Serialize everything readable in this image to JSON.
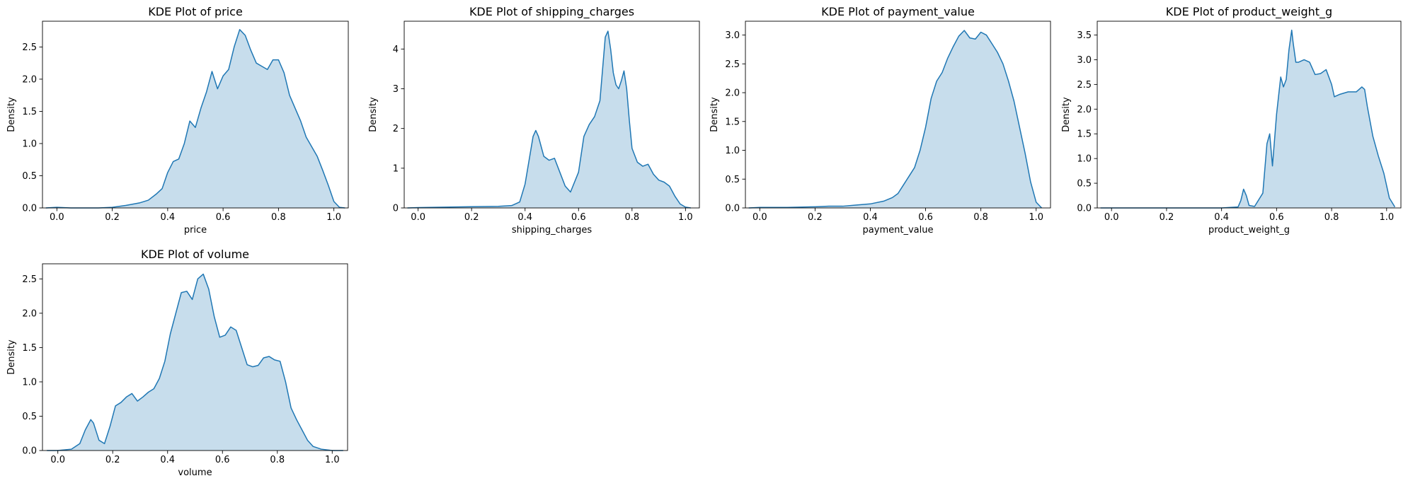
{
  "figure": {
    "background": "#ffffff"
  },
  "style": {
    "line_color": "#1f77b4",
    "fill_color": "#1f77b4",
    "fill_opacity": 0.25
  },
  "chart_data": [
    {
      "type": "area",
      "title": "KDE Plot of price",
      "xlabel": "price",
      "ylabel": "Density",
      "xlim": [
        -0.052,
        1.052
      ],
      "ylim": [
        0,
        2.9
      ],
      "xticks": [
        0.0,
        0.2,
        0.4,
        0.6,
        0.8,
        1.0
      ],
      "xtick_labels": [
        "0.0",
        "0.2",
        "0.4",
        "0.6",
        "0.8",
        "1.0"
      ],
      "yticks": [
        0.0,
        0.5,
        1.0,
        1.5,
        2.0,
        2.5
      ],
      "ytick_labels": [
        "0.0",
        "0.5",
        "1.0",
        "1.5",
        "2.0",
        "2.5"
      ],
      "grid": false,
      "series": [
        {
          "x": [
            -0.04,
            0.0,
            0.05,
            0.1,
            0.15,
            0.2,
            0.25,
            0.3,
            0.33,
            0.36,
            0.38,
            0.4,
            0.42,
            0.44,
            0.46,
            0.48,
            0.5,
            0.52,
            0.54,
            0.56,
            0.58,
            0.6,
            0.62,
            0.64,
            0.66,
            0.68,
            0.7,
            0.72,
            0.74,
            0.76,
            0.78,
            0.8,
            0.82,
            0.84,
            0.86,
            0.88,
            0.9,
            0.92,
            0.94,
            0.96,
            0.98,
            1.0,
            1.02,
            1.04
          ],
          "y": [
            0.0,
            0.01,
            0.0,
            0.0,
            0.0,
            0.01,
            0.04,
            0.08,
            0.12,
            0.22,
            0.3,
            0.55,
            0.72,
            0.76,
            1.0,
            1.35,
            1.25,
            1.55,
            1.8,
            2.12,
            1.85,
            2.05,
            2.15,
            2.5,
            2.77,
            2.68,
            2.45,
            2.25,
            2.2,
            2.15,
            2.3,
            2.3,
            2.1,
            1.75,
            1.55,
            1.35,
            1.1,
            0.95,
            0.8,
            0.58,
            0.35,
            0.1,
            0.01,
            0.0
          ]
        }
      ]
    },
    {
      "type": "area",
      "title": "KDE Plot of shipping_charges",
      "xlabel": "shipping_charges",
      "ylabel": "Density",
      "xlim": [
        -0.052,
        1.052
      ],
      "ylim": [
        0,
        4.7
      ],
      "xticks": [
        0.0,
        0.2,
        0.4,
        0.6,
        0.8,
        1.0
      ],
      "xtick_labels": [
        "0.0",
        "0.2",
        "0.4",
        "0.6",
        "0.8",
        "1.0"
      ],
      "yticks": [
        0,
        1,
        2,
        3,
        4
      ],
      "ytick_labels": [
        "0",
        "1",
        "2",
        "3",
        "4"
      ],
      "grid": false,
      "series": [
        {
          "x": [
            -0.04,
            0.0,
            0.1,
            0.2,
            0.3,
            0.35,
            0.38,
            0.4,
            0.42,
            0.43,
            0.44,
            0.45,
            0.47,
            0.49,
            0.51,
            0.53,
            0.55,
            0.57,
            0.6,
            0.62,
            0.64,
            0.66,
            0.68,
            0.69,
            0.7,
            0.71,
            0.72,
            0.73,
            0.74,
            0.75,
            0.76,
            0.77,
            0.78,
            0.79,
            0.8,
            0.82,
            0.84,
            0.86,
            0.88,
            0.9,
            0.92,
            0.94,
            0.96,
            0.98,
            1.0,
            1.02
          ],
          "y": [
            0.0,
            0.01,
            0.02,
            0.03,
            0.04,
            0.06,
            0.15,
            0.6,
            1.4,
            1.8,
            1.95,
            1.8,
            1.3,
            1.2,
            1.25,
            0.9,
            0.55,
            0.4,
            0.9,
            1.8,
            2.1,
            2.3,
            2.7,
            3.5,
            4.3,
            4.45,
            4.0,
            3.4,
            3.1,
            3.0,
            3.2,
            3.45,
            3.0,
            2.2,
            1.5,
            1.15,
            1.05,
            1.1,
            0.85,
            0.7,
            0.65,
            0.55,
            0.3,
            0.1,
            0.02,
            0.0
          ]
        }
      ]
    },
    {
      "type": "area",
      "title": "KDE Plot of payment_value",
      "xlabel": "payment_value",
      "ylabel": "Density",
      "xlim": [
        -0.052,
        1.052
      ],
      "ylim": [
        0,
        3.24
      ],
      "xticks": [
        0.0,
        0.2,
        0.4,
        0.6,
        0.8,
        1.0
      ],
      "xtick_labels": [
        "0.0",
        "0.2",
        "0.4",
        "0.6",
        "0.8",
        "1.0"
      ],
      "yticks": [
        0.0,
        0.5,
        1.0,
        1.5,
        2.0,
        2.5,
        3.0
      ],
      "ytick_labels": [
        "0.0",
        "0.5",
        "1.0",
        "1.5",
        "2.0",
        "2.5",
        "3.0"
      ],
      "grid": false,
      "series": [
        {
          "x": [
            -0.04,
            0.0,
            0.1,
            0.2,
            0.25,
            0.3,
            0.35,
            0.4,
            0.45,
            0.48,
            0.5,
            0.52,
            0.54,
            0.56,
            0.58,
            0.6,
            0.62,
            0.64,
            0.66,
            0.68,
            0.7,
            0.72,
            0.74,
            0.76,
            0.78,
            0.8,
            0.82,
            0.84,
            0.86,
            0.88,
            0.9,
            0.92,
            0.94,
            0.96,
            0.98,
            1.0,
            1.02
          ],
          "y": [
            0.0,
            0.01,
            0.01,
            0.02,
            0.03,
            0.03,
            0.05,
            0.07,
            0.12,
            0.18,
            0.25,
            0.4,
            0.55,
            0.7,
            1.0,
            1.4,
            1.9,
            2.2,
            2.35,
            2.6,
            2.8,
            2.98,
            3.08,
            2.95,
            2.93,
            3.05,
            3.0,
            2.85,
            2.7,
            2.5,
            2.2,
            1.85,
            1.4,
            0.95,
            0.45,
            0.1,
            0.0
          ]
        }
      ]
    },
    {
      "type": "area",
      "title": "KDE Plot of product_weight_g",
      "xlabel": "product_weight_g",
      "ylabel": "Density",
      "xlim": [
        -0.052,
        1.052
      ],
      "ylim": [
        0,
        3.78
      ],
      "xticks": [
        0.0,
        0.2,
        0.4,
        0.6,
        0.8,
        1.0
      ],
      "xtick_labels": [
        "0.0",
        "0.2",
        "0.4",
        "0.6",
        "0.8",
        "1.0"
      ],
      "yticks": [
        0.0,
        0.5,
        1.0,
        1.5,
        2.0,
        2.5,
        3.0,
        3.5
      ],
      "ytick_labels": [
        "0.0",
        "0.5",
        "1.0",
        "1.5",
        "2.0",
        "2.5",
        "3.0",
        "3.5"
      ],
      "grid": false,
      "series": [
        {
          "x": [
            -0.04,
            0.0,
            0.2,
            0.4,
            0.46,
            0.47,
            0.48,
            0.49,
            0.5,
            0.52,
            0.55,
            0.565,
            0.575,
            0.585,
            0.6,
            0.615,
            0.625,
            0.635,
            0.645,
            0.655,
            0.66,
            0.67,
            0.68,
            0.7,
            0.72,
            0.74,
            0.76,
            0.78,
            0.8,
            0.81,
            0.83,
            0.86,
            0.89,
            0.91,
            0.92,
            0.93,
            0.95,
            0.97,
            0.99,
            1.01,
            1.03
          ],
          "y": [
            0.0,
            0.0,
            0.0,
            0.0,
            0.02,
            0.15,
            0.38,
            0.25,
            0.05,
            0.03,
            0.3,
            1.3,
            1.5,
            0.85,
            1.9,
            2.65,
            2.45,
            2.6,
            3.2,
            3.6,
            3.35,
            2.95,
            2.95,
            3.0,
            2.95,
            2.7,
            2.72,
            2.8,
            2.5,
            2.25,
            2.3,
            2.35,
            2.35,
            2.45,
            2.4,
            2.05,
            1.45,
            1.05,
            0.7,
            0.2,
            0.02
          ]
        }
      ]
    },
    {
      "type": "area",
      "title": "KDE Plot of volume",
      "xlabel": "volume",
      "ylabel": "Density",
      "xlim": [
        -0.056,
        1.056
      ],
      "ylim": [
        0,
        2.72
      ],
      "xticks": [
        0.0,
        0.2,
        0.4,
        0.6,
        0.8,
        1.0
      ],
      "xtick_labels": [
        "0.0",
        "0.2",
        "0.4",
        "0.6",
        "0.8",
        "1.0"
      ],
      "yticks": [
        0.0,
        0.5,
        1.0,
        1.5,
        2.0,
        2.5
      ],
      "ytick_labels": [
        "0.0",
        "0.5",
        "1.0",
        "1.5",
        "2.0",
        "2.5"
      ],
      "grid": false,
      "series": [
        {
          "x": [
            -0.04,
            0.0,
            0.05,
            0.08,
            0.1,
            0.12,
            0.13,
            0.15,
            0.17,
            0.19,
            0.21,
            0.23,
            0.25,
            0.27,
            0.29,
            0.31,
            0.33,
            0.35,
            0.37,
            0.39,
            0.41,
            0.43,
            0.45,
            0.47,
            0.49,
            0.51,
            0.53,
            0.55,
            0.57,
            0.59,
            0.61,
            0.63,
            0.65,
            0.67,
            0.69,
            0.71,
            0.73,
            0.75,
            0.77,
            0.79,
            0.81,
            0.83,
            0.85,
            0.87,
            0.89,
            0.91,
            0.93,
            0.96,
            1.0,
            1.04
          ],
          "y": [
            0.0,
            0.0,
            0.02,
            0.1,
            0.3,
            0.45,
            0.4,
            0.15,
            0.1,
            0.35,
            0.65,
            0.7,
            0.78,
            0.83,
            0.72,
            0.78,
            0.85,
            0.9,
            1.05,
            1.3,
            1.7,
            2.0,
            2.3,
            2.32,
            2.2,
            2.5,
            2.57,
            2.35,
            1.95,
            1.65,
            1.68,
            1.8,
            1.75,
            1.5,
            1.25,
            1.22,
            1.24,
            1.35,
            1.37,
            1.32,
            1.3,
            1.0,
            0.62,
            0.45,
            0.3,
            0.15,
            0.06,
            0.02,
            0.0,
            0.0
          ]
        }
      ]
    }
  ]
}
